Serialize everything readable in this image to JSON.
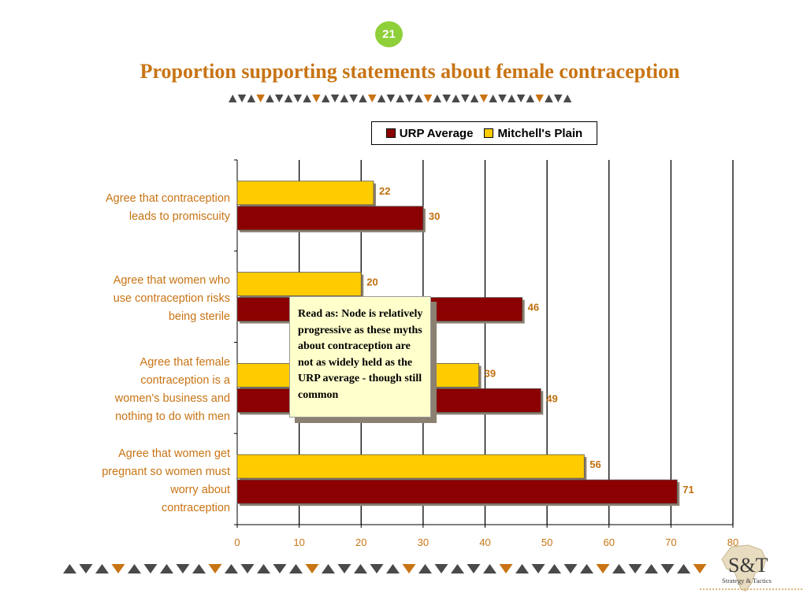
{
  "slide": {
    "page_number": "21",
    "title": "Proportion supporting statements about female contraception",
    "note": "Read as: Node is relatively progressive as these myths about contraception are not as widely held as the URP average - though still common",
    "logo_text": "S&T",
    "logo_subtext": "Strategy & Tactics"
  },
  "colors": {
    "title": "#c87414",
    "badge": "#8ecf3a",
    "urp": "#8b0000",
    "mitchells": "#ffcc00",
    "data_label": "#c07010",
    "category_label": "#c87414",
    "deco_dark": "#4a4a4a",
    "deco_accent": "#c87414"
  },
  "chart_data": {
    "type": "bar",
    "orientation": "horizontal",
    "categories": [
      [
        "Agree that contraception",
        "leads to promiscuity"
      ],
      [
        "Agree that women who",
        "use contraception risks",
        "being sterile"
      ],
      [
        "Agree that female",
        "contraception is a",
        "women's business and",
        "nothing to do with men"
      ],
      [
        "Agree that women get",
        "pregnant so women must",
        "worry about",
        "contraception"
      ]
    ],
    "series": [
      {
        "name": "Mitchell's Plain",
        "values": [
          22,
          20,
          39,
          56
        ]
      },
      {
        "name": "URP Average",
        "values": [
          30,
          46,
          49,
          71
        ]
      }
    ],
    "legend_order": [
      "URP Average",
      "Mitchell's Plain"
    ],
    "xlim": [
      0,
      80
    ],
    "x_ticks": [
      0,
      10,
      20,
      30,
      40,
      50,
      60,
      70,
      80
    ],
    "grid": true,
    "legend_position": "top"
  }
}
